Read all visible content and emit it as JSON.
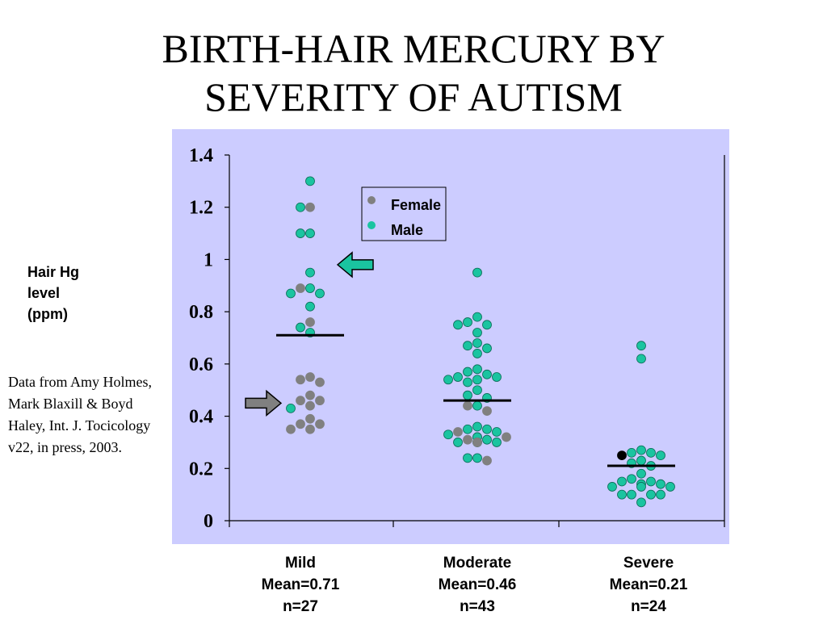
{
  "title_lines": [
    "BIRTH-HAIR MERCURY BY",
    "SEVERITY OF AUTISM"
  ],
  "ylabel_lines": [
    "Hair Hg",
    "level",
    "(ppm)"
  ],
  "source_note": "Data from Amy Holmes, Mark Blaxill & Boyd Haley, Int. J. Tocicology v22, in press, 2003.",
  "colors": {
    "plot_background": "#ccccff",
    "female": "#808080",
    "male": "#1ac4a0",
    "mean_line": "#000000",
    "arrow_green": "#1ac4a0",
    "arrow_gray": "#808080",
    "outlier_black": "#000000"
  },
  "chart_data": {
    "type": "scatter",
    "title": "BIRTH-HAIR MERCURY BY SEVERITY OF AUTISM",
    "ylabel": "Hair Hg level (ppm)",
    "ylim": [
      0,
      1.4
    ],
    "yticks": [
      "0",
      "0.2",
      "0.4",
      "0.6",
      "0.8",
      "1",
      "1.2",
      "1.4"
    ],
    "ytick_values": [
      0,
      0.2,
      0.4,
      0.6,
      0.8,
      1.0,
      1.2,
      1.4
    ],
    "grid": false,
    "legend": {
      "placement": "top-center",
      "entries": [
        "Female",
        "Male"
      ]
    },
    "groups": [
      {
        "label_lines": [
          "Mild",
          "Mean=0.71",
          "n=27"
        ],
        "name": "Mild",
        "mean": 0.71,
        "n": 27,
        "points": [
          {
            "y": 1.3,
            "sex": "Male"
          },
          {
            "y": 1.2,
            "sex": "Female"
          },
          {
            "y": 1.2,
            "sex": "Male"
          },
          {
            "y": 1.1,
            "sex": "Male"
          },
          {
            "y": 1.1,
            "sex": "Male"
          },
          {
            "y": 0.95,
            "sex": "Male"
          },
          {
            "y": 0.89,
            "sex": "Male"
          },
          {
            "y": 0.89,
            "sex": "Female"
          },
          {
            "y": 0.87,
            "sex": "Male"
          },
          {
            "y": 0.87,
            "sex": "Male"
          },
          {
            "y": 0.82,
            "sex": "Male"
          },
          {
            "y": 0.76,
            "sex": "Female"
          },
          {
            "y": 0.74,
            "sex": "Male"
          },
          {
            "y": 0.72,
            "sex": "Male"
          },
          {
            "y": 0.55,
            "sex": "Female"
          },
          {
            "y": 0.54,
            "sex": "Female"
          },
          {
            "y": 0.53,
            "sex": "Female"
          },
          {
            "y": 0.48,
            "sex": "Female"
          },
          {
            "y": 0.46,
            "sex": "Female"
          },
          {
            "y": 0.46,
            "sex": "Female"
          },
          {
            "y": 0.44,
            "sex": "Female"
          },
          {
            "y": 0.43,
            "sex": "Male"
          },
          {
            "y": 0.39,
            "sex": "Female"
          },
          {
            "y": 0.37,
            "sex": "Female"
          },
          {
            "y": 0.37,
            "sex": "Female"
          },
          {
            "y": 0.35,
            "sex": "Female"
          },
          {
            "y": 0.35,
            "sex": "Female"
          }
        ]
      },
      {
        "label_lines": [
          "Moderate",
          "Mean=0.46",
          "n=43"
        ],
        "name": "Moderate",
        "mean": 0.46,
        "n": 43,
        "points": [
          {
            "y": 0.95,
            "sex": "Male"
          },
          {
            "y": 0.78,
            "sex": "Male"
          },
          {
            "y": 0.76,
            "sex": "Male"
          },
          {
            "y": 0.75,
            "sex": "Male"
          },
          {
            "y": 0.75,
            "sex": "Male"
          },
          {
            "y": 0.72,
            "sex": "Male"
          },
          {
            "y": 0.68,
            "sex": "Male"
          },
          {
            "y": 0.67,
            "sex": "Male"
          },
          {
            "y": 0.66,
            "sex": "Male"
          },
          {
            "y": 0.64,
            "sex": "Male"
          },
          {
            "y": 0.58,
            "sex": "Male"
          },
          {
            "y": 0.57,
            "sex": "Male"
          },
          {
            "y": 0.56,
            "sex": "Male"
          },
          {
            "y": 0.55,
            "sex": "Male"
          },
          {
            "y": 0.55,
            "sex": "Male"
          },
          {
            "y": 0.54,
            "sex": "Male"
          },
          {
            "y": 0.54,
            "sex": "Male"
          },
          {
            "y": 0.53,
            "sex": "Male"
          },
          {
            "y": 0.5,
            "sex": "Male"
          },
          {
            "y": 0.48,
            "sex": "Male"
          },
          {
            "y": 0.47,
            "sex": "Male"
          },
          {
            "y": 0.44,
            "sex": "Male"
          },
          {
            "y": 0.44,
            "sex": "Female"
          },
          {
            "y": 0.42,
            "sex": "Female"
          },
          {
            "y": 0.36,
            "sex": "Male"
          },
          {
            "y": 0.35,
            "sex": "Male"
          },
          {
            "y": 0.35,
            "sex": "Male"
          },
          {
            "y": 0.34,
            "sex": "Female"
          },
          {
            "y": 0.34,
            "sex": "Male"
          },
          {
            "y": 0.33,
            "sex": "Male"
          },
          {
            "y": 0.32,
            "sex": "Female"
          },
          {
            "y": 0.32,
            "sex": "Female"
          },
          {
            "y": 0.32,
            "sex": "Male"
          },
          {
            "y": 0.31,
            "sex": "Female"
          },
          {
            "y": 0.31,
            "sex": "Male"
          },
          {
            "y": 0.3,
            "sex": "Male"
          },
          {
            "y": 0.3,
            "sex": "Male"
          },
          {
            "y": 0.3,
            "sex": "Male"
          },
          {
            "y": 0.3,
            "sex": "Male"
          },
          {
            "y": 0.3,
            "sex": "Female"
          },
          {
            "y": 0.24,
            "sex": "Male"
          },
          {
            "y": 0.24,
            "sex": "Male"
          },
          {
            "y": 0.23,
            "sex": "Female"
          }
        ]
      },
      {
        "label_lines": [
          "Severe",
          "Mean=0.21",
          "n=24"
        ],
        "name": "Severe",
        "mean": 0.21,
        "n": 24,
        "points": [
          {
            "y": 0.67,
            "sex": "Male"
          },
          {
            "y": 0.62,
            "sex": "Male"
          },
          {
            "y": 0.27,
            "sex": "Male"
          },
          {
            "y": 0.26,
            "sex": "Male"
          },
          {
            "y": 0.26,
            "sex": "Male"
          },
          {
            "y": 0.25,
            "sex": "Other"
          },
          {
            "y": 0.25,
            "sex": "Male"
          },
          {
            "y": 0.23,
            "sex": "Male"
          },
          {
            "y": 0.22,
            "sex": "Male"
          },
          {
            "y": 0.21,
            "sex": "Male"
          },
          {
            "y": 0.18,
            "sex": "Male"
          },
          {
            "y": 0.16,
            "sex": "Male"
          },
          {
            "y": 0.15,
            "sex": "Male"
          },
          {
            "y": 0.15,
            "sex": "Male"
          },
          {
            "y": 0.14,
            "sex": "Male"
          },
          {
            "y": 0.14,
            "sex": "Male"
          },
          {
            "y": 0.13,
            "sex": "Male"
          },
          {
            "y": 0.13,
            "sex": "Male"
          },
          {
            "y": 0.13,
            "sex": "Male"
          },
          {
            "y": 0.1,
            "sex": "Male"
          },
          {
            "y": 0.1,
            "sex": "Male"
          },
          {
            "y": 0.1,
            "sex": "Male"
          },
          {
            "y": 0.1,
            "sex": "Male"
          },
          {
            "y": 0.07,
            "sex": "Male"
          }
        ]
      }
    ],
    "annotations": [
      {
        "kind": "arrow",
        "direction": "left",
        "color": "arrow_green",
        "group": "Mild",
        "y": 0.98
      },
      {
        "kind": "arrow",
        "direction": "right",
        "color": "arrow_gray",
        "group": "Mild",
        "y": 0.45
      }
    ]
  }
}
